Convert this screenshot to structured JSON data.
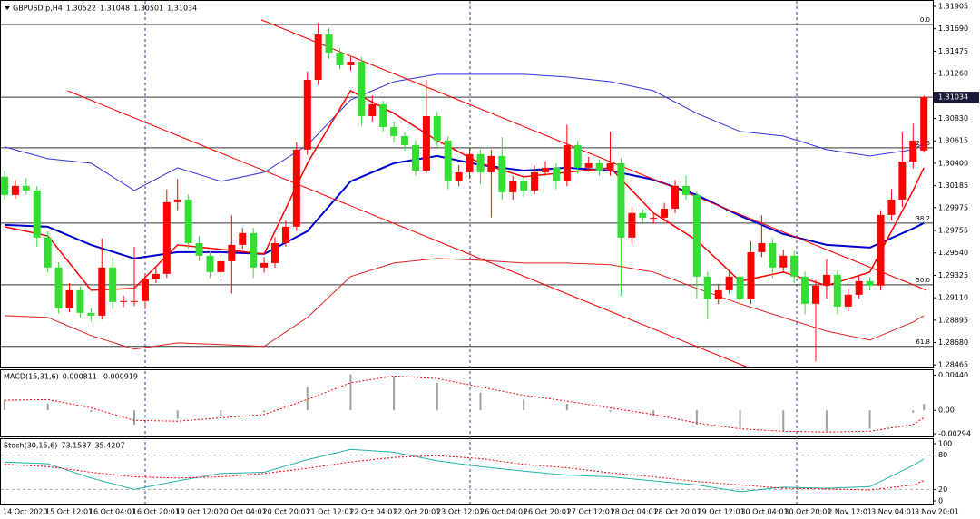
{
  "chart_data": [
    {
      "type": "candlestick",
      "title": "GBPUSD.p,H4",
      "ohlc": [
        1.30522,
        1.31048,
        1.30501,
        1.31034
      ],
      "x_labels": [
        "14 Oct 2020",
        "15 Oct 12:01",
        "16 Oct 04:01",
        "16 Oct 20:01",
        "19 Oct 12:01",
        "20 Oct 04:01",
        "20 Oct 20:01",
        "21 Oct 12:01",
        "22 Oct 04:01",
        "22 Oct 20:01",
        "23 Oct 12:01",
        "26 Oct 04:01",
        "26 Oct 20:01",
        "27 Oct 12:01",
        "28 Oct 04:01",
        "28 Oct 20:01",
        "29 Oct 12:01",
        "30 Oct 04:01",
        "30 Oct 20:01",
        "2 Nov 12:01",
        "3 Nov 04:01",
        "3 Nov 20:01"
      ],
      "open": [
        1.3027,
        1.30096,
        1.30183,
        1.30139,
        1.29687,
        1.294,
        1.29008,
        1.29182,
        1.28965,
        1.28938,
        1.294,
        1.29069,
        1.29078,
        1.29078,
        1.29286,
        1.29339,
        1.30026,
        1.30052,
        1.29634,
        1.29513,
        1.29356,
        1.2946,
        1.29617,
        1.2973,
        1.294,
        1.29443,
        1.29634,
        1.29791,
        1.30531,
        1.312,
        1.31635,
        1.31461,
        1.3134,
        1.31374,
        1.30852,
        1.30966,
        1.30748,
        1.30661,
        1.30574,
        1.3033,
        1.30852,
        1.30618,
        1.30226,
        1.30313,
        1.30487,
        1.30313,
        1.3047,
        1.30122,
        1.30226,
        1.30139,
        1.30313,
        1.30357,
        1.30226,
        1.30574,
        1.30357,
        1.304,
        1.3033,
        1.304,
        1.29687,
        1.29922,
        1.29878,
        1.29878,
        1.29965,
        1.30183,
        1.30096,
        1.29313,
        1.29095,
        1.29182,
        1.29313,
        1.29095,
        1.29547,
        1.29634,
        1.294,
        1.29513,
        1.29313,
        1.29052,
        1.29226,
        1.2933,
        1.29025,
        1.29139,
        1.29269,
        1.29226,
        1.29904,
        1.30052,
        1.30417,
        1.30522
      ],
      "high": [
        1.3033,
        1.3024,
        1.3026,
        1.3018,
        1.2975,
        1.2945,
        1.2925,
        1.2922,
        1.2901,
        1.2968,
        1.295,
        1.2913,
        1.296,
        1.2934,
        1.294,
        1.3015,
        1.3025,
        1.301,
        1.297,
        1.2956,
        1.2952,
        1.299,
        1.2978,
        1.2978,
        1.295,
        1.2969,
        1.2985,
        1.306,
        1.3128,
        1.3175,
        1.317,
        1.315,
        1.3142,
        1.3142,
        1.3105,
        1.31,
        1.308,
        1.307,
        1.3062,
        1.312,
        1.309,
        1.3066,
        1.3038,
        1.3055,
        1.3053,
        1.3053,
        1.3065,
        1.3028,
        1.3027,
        1.3038,
        1.3042,
        1.304,
        1.3077,
        1.3062,
        1.3046,
        1.3044,
        1.307,
        1.3045,
        1.2998,
        1.2996,
        1.2992,
        1.3002,
        1.3024,
        1.3028,
        1.3014,
        1.2936,
        1.2924,
        1.2937,
        1.2936,
        1.2965,
        1.299,
        1.2968,
        1.2957,
        1.2956,
        1.2936,
        1.2928,
        1.2948,
        1.2937,
        1.292,
        1.2932,
        1.2931,
        1.2995,
        1.3015,
        1.307,
        1.3078,
        1.31048
      ],
      "low": [
        1.3005,
        1.3006,
        1.301,
        1.296,
        1.2935,
        1.2896,
        1.2897,
        1.2892,
        1.2888,
        1.289,
        1.29,
        1.2902,
        1.2903,
        1.29,
        1.2925,
        1.293,
        1.2995,
        1.2958,
        1.2946,
        1.293,
        1.2931,
        1.2915,
        1.2958,
        1.293,
        1.2935,
        1.294,
        1.296,
        1.2975,
        1.3048,
        1.3115,
        1.314,
        1.313,
        1.3129,
        1.3076,
        1.308,
        1.307,
        1.306,
        1.3052,
        1.3028,
        1.303,
        1.3056,
        1.3015,
        1.3018,
        1.3025,
        1.302,
        1.2988,
        1.3005,
        1.3005,
        1.3008,
        1.301,
        1.3028,
        1.3015,
        1.3018,
        1.303,
        1.3032,
        1.3028,
        1.3028,
        1.2913,
        1.2962,
        1.2983,
        1.2982,
        1.2984,
        1.2992,
        1.3005,
        1.291,
        1.289,
        1.2905,
        1.2915,
        1.2904,
        1.2905,
        1.295,
        1.293,
        1.2935,
        1.2925,
        1.2895,
        1.285,
        1.291,
        1.2895,
        1.2898,
        1.291,
        1.2918,
        1.2918,
        1.2985,
        1.2998,
        1.3035,
        1.30501
      ],
      "close": [
        1.30096,
        1.30183,
        1.30139,
        1.29687,
        1.294,
        1.29008,
        1.29182,
        1.28965,
        1.28938,
        1.294,
        1.29069,
        1.29078,
        1.29078,
        1.29286,
        1.29339,
        1.30026,
        1.30052,
        1.29634,
        1.29513,
        1.29356,
        1.2946,
        1.29617,
        1.2973,
        1.294,
        1.29443,
        1.29634,
        1.29791,
        1.30531,
        1.312,
        1.31635,
        1.31461,
        1.3134,
        1.31374,
        1.30852,
        1.30966,
        1.30748,
        1.30661,
        1.30574,
        1.3033,
        1.30852,
        1.30618,
        1.30226,
        1.30313,
        1.30487,
        1.30313,
        1.3047,
        1.30122,
        1.30226,
        1.30139,
        1.30313,
        1.30357,
        1.30226,
        1.30574,
        1.30357,
        1.304,
        1.3033,
        1.304,
        1.29687,
        1.29922,
        1.29878,
        1.29878,
        1.29965,
        1.30183,
        1.30096,
        1.29313,
        1.29095,
        1.29182,
        1.29313,
        1.29095,
        1.29547,
        1.29634,
        1.294,
        1.29513,
        1.29313,
        1.29052,
        1.29226,
        1.2933,
        1.29025,
        1.29139,
        1.29269,
        1.29226,
        1.29904,
        1.30052,
        1.30417,
        1.30618,
        1.31034
      ],
      "colors": {
        "up": "#ff0000",
        "down": "#33dd33"
      },
      "ylim": [
        1.28441,
        1.31966
      ],
      "yticks": [
        1.31905,
        {
          "value": 1.3169,
          "label": "1.31690"
        },
        1.31475,
        {
          "value": 1.3126,
          "label": "1.31260"
        },
        {
          "value": 1.3083,
          "label": "1.30830"
        },
        1.30615,
        {
          "value": 1.304,
          "label": "1.30400"
        },
        1.30185,
        1.29975,
        1.29755,
        {
          "value": 1.2954,
          "label": "1.29540"
        },
        1.29325,
        {
          "value": 1.2911,
          "label": "1.29110"
        },
        1.28895,
        {
          "value": 1.2868,
          "label": "1.28680"
        },
        1.28465
      ],
      "current_price": 1.31034,
      "levels": [
        {
          "label": "0.0",
          "value": 1.31731
        },
        {
          "label": "23.6",
          "value": 1.30548
        },
        {
          "label": "38.2",
          "value": 1.29826
        },
        {
          "label": "50.0",
          "value": 1.29234
        },
        {
          "label": "61.8",
          "value": 1.28643
        }
      ],
      "overlays": [
        {
          "color": "#3333dd",
          "width": 1,
          "x": [
            0,
            4,
            8,
            12,
            16,
            20,
            24,
            28,
            32,
            36,
            40,
            44,
            48,
            52,
            56,
            60,
            64,
            68,
            72,
            76,
            80,
            84,
            85
          ],
          "values": [
            1.30557,
            1.30444,
            1.304,
            1.30139,
            1.30357,
            1.30226,
            1.30313,
            1.30574,
            1.31009,
            1.31183,
            1.31253,
            1.31253,
            1.31253,
            1.31227,
            1.31183,
            1.31096,
            1.30879,
            1.30705,
            1.30661,
            1.30531,
            1.3047,
            1.30531,
            1.30591
          ]
        },
        {
          "color": "#dd2222",
          "width": 1,
          "x": [
            0,
            4,
            8,
            12,
            16,
            20,
            24,
            28,
            32,
            36,
            40,
            44,
            48,
            52,
            56,
            60,
            64,
            68,
            72,
            76,
            80,
            84,
            85
          ],
          "values": [
            1.28938,
            1.28921,
            1.28747,
            1.28617,
            1.28677,
            1.2866,
            1.28643,
            1.28921,
            1.29313,
            1.29443,
            1.29486,
            1.29469,
            1.29443,
            1.29443,
            1.29426,
            1.29356,
            1.292,
            1.29052,
            1.28921,
            1.2879,
            1.28703,
            1.28878,
            1.28938
          ]
        },
        {
          "color": "#0000cc",
          "width": 2,
          "x": [
            0,
            4,
            8,
            12,
            16,
            20,
            24,
            28,
            32,
            36,
            40,
            44,
            48,
            52,
            56,
            60,
            64,
            68,
            72,
            76,
            80,
            84,
            85
          ],
          "values": [
            1.29808,
            1.29791,
            1.29617,
            1.29486,
            1.29547,
            1.29547,
            1.2953,
            1.29748,
            1.30226,
            1.304,
            1.3047,
            1.30383,
            1.3033,
            1.30357,
            1.3033,
            1.30243,
            1.30096,
            1.29895,
            1.29721,
            1.29617,
            1.29591,
            1.29774,
            1.29826
          ]
        },
        {
          "color": "#ff0000",
          "width": 1.5,
          "x": [
            0,
            4,
            8,
            12,
            16,
            20,
            24,
            28,
            32,
            36,
            40,
            44,
            48,
            52,
            56,
            60,
            64,
            68,
            72,
            76,
            80,
            84,
            85
          ],
          "values": [
            1.29791,
            1.29704,
            1.29182,
            1.292,
            1.29617,
            1.29574,
            1.2953,
            1.304,
            1.31096,
            1.30879,
            1.30618,
            1.304,
            1.3027,
            1.30313,
            1.30357,
            1.29922,
            1.29661,
            1.29269,
            1.29356,
            1.29226,
            1.29356,
            1.30139,
            1.30357
          ]
        },
        {
          "color": "#ff0000",
          "width": 1,
          "x": [
            5.83,
            68.75
          ],
          "values": [
            1.31096,
            1.28441
          ]
        },
        {
          "color": "#ff0000",
          "width": 1,
          "x": [
            23.75,
            85.25
          ],
          "values": [
            1.31775,
            1.29182
          ]
        }
      ]
    },
    {
      "type": "macd",
      "title": "MACD(15,31,6)",
      "readout": [
        0.000811,
        -0.000919
      ],
      "x": [
        0,
        4,
        8,
        12,
        16,
        20,
        24,
        28,
        32,
        36,
        40,
        44,
        48,
        52,
        56,
        60,
        64,
        68,
        72,
        76,
        80,
        84,
        85
      ],
      "histogram": [
        0.00136,
        0.00084,
        -0.00021,
        -0.00178,
        -0.00105,
        -0.00073,
        -0.00021,
        0.00293,
        0.00451,
        0.0043,
        0.00346,
        0.0022,
        0.00136,
        0.00084,
        -0.00021,
        -0.00073,
        -0.00178,
        -0.00231,
        -0.00262,
        -0.00262,
        -0.00231,
        -0.0003,
        0.000811
      ],
      "signal": [
        0.00126,
        0.00136,
        0.00031,
        -0.00126,
        -0.00136,
        -0.00094,
        -0.00052,
        0.00136,
        0.00346,
        0.0043,
        0.00398,
        0.00293,
        0.00189,
        0.00115,
        0.00031,
        -0.00052,
        -0.00157,
        -0.00231,
        -0.00262,
        -0.00272,
        -0.00262,
        -0.00178,
        -0.000919
      ],
      "colors": {
        "histogram": "#a0a0a0",
        "signal": "#ff0000"
      },
      "ylim": [
        -0.00304,
        0.0048
      ],
      "yticks": [
        {
          "value": 0.0044,
          "label": "0.00440"
        },
        {
          "value": 0,
          "label": "0.00"
        },
        -0.00294
      ]
    },
    {
      "type": "stochastic",
      "title": "Stoch(30,15,6)",
      "readout": [
        73.1587,
        35.4207
      ],
      "x": [
        0,
        4,
        8,
        12,
        16,
        20,
        24,
        28,
        32,
        36,
        40,
        44,
        48,
        52,
        56,
        60,
        64,
        68,
        72,
        76,
        80,
        84,
        85
      ],
      "main": [
        68,
        65,
        40,
        20,
        35,
        48,
        50,
        72,
        90,
        85,
        70,
        60,
        52,
        45,
        42,
        35,
        28,
        16,
        24,
        22,
        25,
        62,
        73.1587
      ],
      "signal": [
        64,
        60,
        50,
        42,
        40,
        42,
        48,
        57,
        68,
        76,
        79,
        74,
        64,
        58,
        49,
        42,
        34,
        28,
        22,
        21,
        19,
        28,
        35.4207
      ],
      "colors": {
        "main": "#20b2aa",
        "signal": "#ff0000"
      },
      "ylim": [
        0,
        100
      ],
      "yticks": [
        100,
        80,
        20,
        0
      ],
      "levels": [
        80,
        20
      ]
    }
  ]
}
